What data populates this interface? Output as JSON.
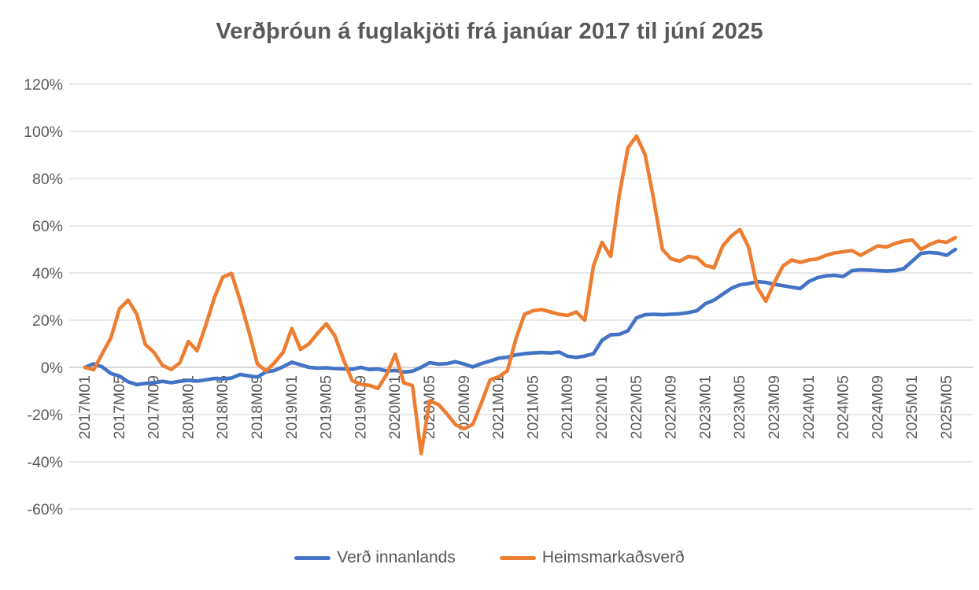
{
  "title": "Verðþróun á fuglakjöti frá janúar 2017 til júní 2025",
  "colors": {
    "series_domestic": "#4472C4",
    "series_world": "#ED7D31",
    "text": "#595959",
    "gridline": "#D9D9D9",
    "axis_line": "#BFBFBF",
    "background": "#FFFFFF"
  },
  "chart_data": {
    "type": "line",
    "title": "Verðþróun á fuglakjöti frá janúar 2017 til júní 2025",
    "x_unit": "month",
    "x_start": "2017M01",
    "x_end": "2025M06",
    "x_tick_every_months": 4,
    "x_tick_labels": [
      "2017M01",
      "2017M05",
      "2017M09",
      "2018M01",
      "2018M05",
      "2018M09",
      "2019M01",
      "2019M05",
      "2019M09",
      "2020M01",
      "2020M05",
      "2020M09",
      "2021M01",
      "2021M05",
      "2021M09",
      "2022M01",
      "2022M05",
      "2022M09",
      "2023M01",
      "2023M05",
      "2023M09",
      "2024M01",
      "2024M05",
      "2024M09",
      "2025M01",
      "2025M05"
    ],
    "y_tick_labels": [
      "120%",
      "100%",
      "80%",
      "60%",
      "40%",
      "20%",
      "0%",
      "-20%",
      "-40%",
      "-60%"
    ],
    "y_tick_values": [
      120,
      100,
      80,
      60,
      40,
      20,
      0,
      -20,
      -40,
      -60
    ],
    "ylim": [
      -60,
      120
    ],
    "grid": true,
    "legend_position": "bottom",
    "series": [
      {
        "name": "Verð innanlands",
        "color": "#4472C4",
        "values": [
          0,
          1.5,
          0.2,
          -2.6,
          -3.7,
          -6.1,
          -7.3,
          -6.8,
          -6.5,
          -5.9,
          -6.5,
          -5.9,
          -5.5,
          -5.8,
          -5.3,
          -4.7,
          -4.9,
          -4.5,
          -3.0,
          -3.6,
          -4.1,
          -1.9,
          -1.3,
          0.3,
          2.2,
          1.1,
          0.0,
          -0.3,
          -0.2,
          -0.5,
          -0.6,
          -0.8,
          0.0,
          -0.9,
          -0.7,
          -1.5,
          -1.3,
          -2.0,
          -1.6,
          0.0,
          2.0,
          1.4,
          1.6,
          2.4,
          1.4,
          0.2,
          1.6,
          2.7,
          3.9,
          4.3,
          5.3,
          5.8,
          6.1,
          6.3,
          6.1,
          6.5,
          4.7,
          4.2,
          4.8,
          5.8,
          11.5,
          13.8,
          14.0,
          15.5,
          21.0,
          22.3,
          22.5,
          22.3,
          22.5,
          22.7,
          23.2,
          24.0,
          27.0,
          28.5,
          31.0,
          33.5,
          35.0,
          35.5,
          36.3,
          36.0,
          35.2,
          34.6,
          34.0,
          33.4,
          36.4,
          38.0,
          38.8,
          39.0,
          38.5,
          41.0,
          41.3,
          41.2,
          41.0,
          40.8,
          41.0,
          41.8,
          45.0,
          48.3,
          48.7,
          48.4,
          47.5,
          50.0
        ]
      },
      {
        "name": "Heimsmarkaðsverð",
        "color": "#ED7D31",
        "values": [
          0,
          -1.0,
          5.8,
          12.5,
          24.8,
          28.5,
          22.6,
          9.7,
          6.4,
          0.8,
          -0.9,
          1.9,
          11.0,
          7.0,
          17.7,
          29.4,
          38.3,
          39.8,
          28.3,
          15.4,
          1.5,
          -1.5,
          2.0,
          6.5,
          16.5,
          7.6,
          10.0,
          14.5,
          18.5,
          13.3,
          3.3,
          -5.6,
          -7.2,
          -7.6,
          -8.9,
          -3.0,
          5.5,
          -6.6,
          -7.7,
          -36.5,
          -14.2,
          -15.7,
          -19.7,
          -24.3,
          -26.0,
          -24.1,
          -15.1,
          -5.3,
          -4.0,
          -1.5,
          12.0,
          22.5,
          24.0,
          24.5,
          23.5,
          22.5,
          22.0,
          23.5,
          20.0,
          43.0,
          53.0,
          47.0,
          73.0,
          93.0,
          98.0,
          90.0,
          71.0,
          50.0,
          46.0,
          45.0,
          47.0,
          46.5,
          43.2,
          42.2,
          51.4,
          55.7,
          58.4,
          51.0,
          34.0,
          28.0,
          36.0,
          43.0,
          45.5,
          44.5,
          45.5,
          46.0,
          47.5,
          48.5,
          49.0,
          49.5,
          47.5,
          49.5,
          51.5,
          51.0,
          52.5,
          53.5,
          54.0,
          50.0,
          52.0,
          53.5,
          53.0,
          55.0
        ]
      }
    ]
  },
  "legend": {
    "items": [
      {
        "label": "Verð innanlands"
      },
      {
        "label": "Heimsmarkaðsverð"
      }
    ]
  }
}
